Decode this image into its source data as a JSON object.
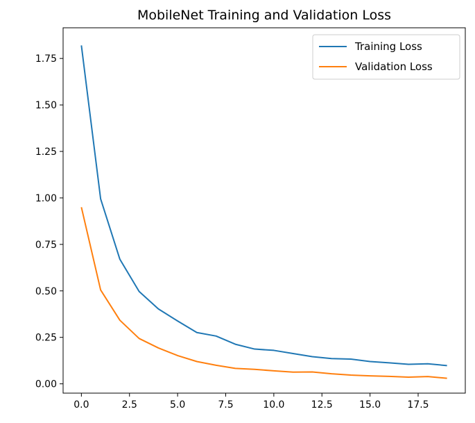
{
  "chart_data": {
    "type": "line",
    "title": "MobileNet Training and Validation Loss",
    "xlabel": "",
    "ylabel": "",
    "x": [
      0,
      1,
      2,
      3,
      4,
      5,
      6,
      7,
      8,
      9,
      10,
      11,
      12,
      13,
      14,
      15,
      16,
      17,
      18,
      19
    ],
    "xlim": [
      -0.95,
      19.95
    ],
    "ylim": [
      -0.05,
      1.915
    ],
    "xticks": [
      0.0,
      2.5,
      5.0,
      7.5,
      10.0,
      12.5,
      15.0,
      17.5
    ],
    "xtick_labels": [
      "0.0",
      "2.5",
      "5.0",
      "7.5",
      "10.0",
      "12.5",
      "15.0",
      "17.5"
    ],
    "yticks": [
      0.0,
      0.25,
      0.5,
      0.75,
      1.0,
      1.25,
      1.5,
      1.75
    ],
    "ytick_labels": [
      "0.00",
      "0.25",
      "0.50",
      "0.75",
      "1.00",
      "1.25",
      "1.50",
      "1.75"
    ],
    "grid": false,
    "legend_position": "top-right",
    "series": [
      {
        "name": "Training Loss",
        "color": "#1f77b4",
        "values": [
          1.82,
          0.995,
          0.67,
          0.497,
          0.403,
          0.338,
          0.276,
          0.257,
          0.213,
          0.187,
          0.18,
          0.163,
          0.146,
          0.136,
          0.133,
          0.12,
          0.113,
          0.105,
          0.108,
          0.098
        ]
      },
      {
        "name": "Validation Loss",
        "color": "#ff7f0e",
        "values": [
          0.95,
          0.505,
          0.342,
          0.244,
          0.193,
          0.152,
          0.12,
          0.1,
          0.083,
          0.078,
          0.07,
          0.063,
          0.064,
          0.054,
          0.047,
          0.043,
          0.04,
          0.036,
          0.039,
          0.03
        ]
      }
    ]
  }
}
